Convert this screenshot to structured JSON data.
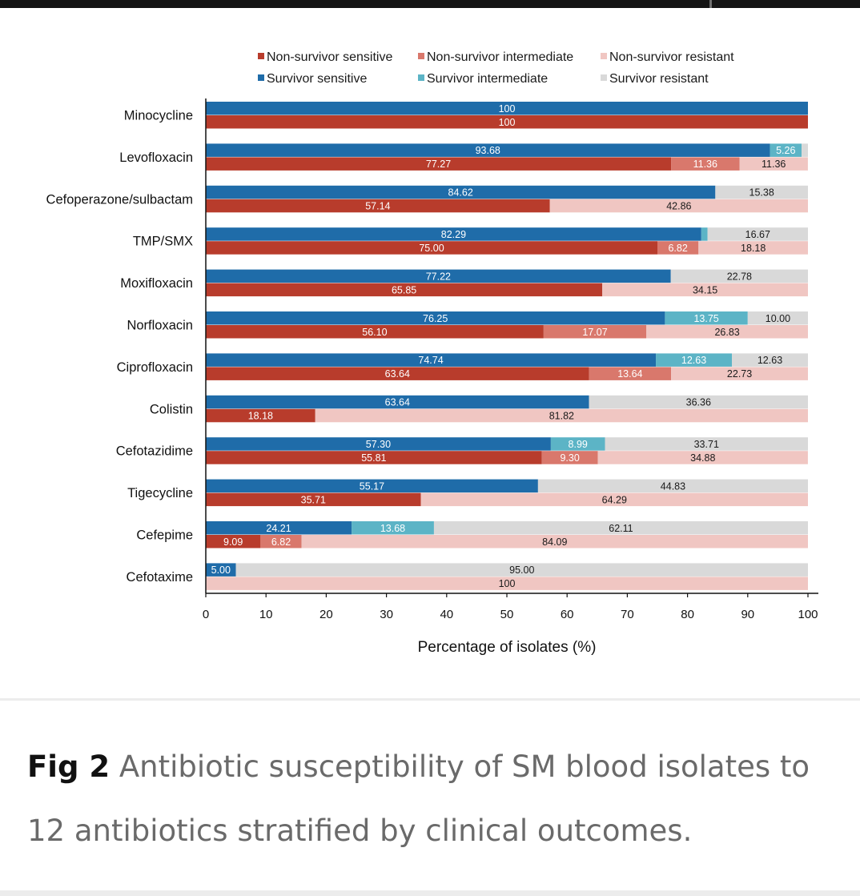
{
  "caption": {
    "figure_label": "Fig 2",
    "text": "Antibiotic susceptibility of SM blood isolates to 12 antibiotics stratified by clinical outcomes."
  },
  "chart_data": {
    "type": "bar",
    "orientation": "horizontal",
    "stacked": true,
    "title": "",
    "xlabel": "Percentage of isolates (%)",
    "ylabel": "",
    "xlim": [
      0,
      100
    ],
    "xticks": [
      0,
      10,
      20,
      30,
      40,
      50,
      60,
      70,
      80,
      90,
      100
    ],
    "grid": false,
    "legend_position": "top",
    "categories": [
      "Minocycline",
      "Levofloxacin",
      "Cefoperazone/sulbactam",
      "TMP/SMX",
      "Moxifloxacin",
      "Norfloxacin",
      "Ciprofloxacin",
      "Colistin",
      "Cefotazidime",
      "Tigecycline",
      "Cefepime",
      "Cefotaxime"
    ],
    "legend": [
      {
        "label": "Non-survivor sensitive",
        "color": "#b83c2c"
      },
      {
        "label": "Non-survivor intermediate",
        "color": "#d9786c"
      },
      {
        "label": "Non-survivor resistant",
        "color": "#f0c6c2"
      },
      {
        "label": "Survivor sensitive",
        "color": "#1f6ca9"
      },
      {
        "label": "Survivor intermediate",
        "color": "#5cb4c6"
      },
      {
        "label": "Survivor resistant",
        "color": "#d9d9d9"
      }
    ],
    "series": [
      {
        "name": "Survivor sensitive",
        "group": "survivor",
        "color": "#1f6ca9",
        "values": [
          100,
          93.68,
          84.62,
          82.29,
          77.22,
          76.25,
          74.74,
          63.64,
          57.3,
          55.17,
          24.21,
          5.0
        ],
        "labels": [
          "100",
          "93.68",
          "84.62",
          "82.29",
          "77.22",
          "76.25",
          "74.74",
          "63.64",
          "57.30",
          "55.17",
          "24.21",
          "5.00"
        ]
      },
      {
        "name": "Survivor intermediate",
        "group": "survivor",
        "color": "#5cb4c6",
        "values": [
          0,
          5.26,
          0,
          1.04,
          0,
          13.75,
          12.63,
          0,
          8.99,
          0,
          13.68,
          0
        ],
        "labels": [
          "",
          "5.26",
          "",
          "",
          "",
          "13.75",
          "12.63",
          "",
          "8.99",
          "",
          "13.68",
          ""
        ]
      },
      {
        "name": "Survivor resistant",
        "group": "survivor",
        "color": "#d9d9d9",
        "values": [
          0,
          1.06,
          15.38,
          16.67,
          22.78,
          10.0,
          12.63,
          36.36,
          33.71,
          44.83,
          62.11,
          95.0
        ],
        "labels": [
          "",
          "",
          "15.38",
          "16.67",
          "22.78",
          "10.00",
          "12.63",
          "36.36",
          "33.71",
          "44.83",
          "62.11",
          "95.00"
        ]
      },
      {
        "name": "Non-survivor sensitive",
        "group": "non-survivor",
        "color": "#b83c2c",
        "values": [
          100,
          77.27,
          57.14,
          75.0,
          65.85,
          56.1,
          63.64,
          18.18,
          55.81,
          35.71,
          9.09,
          0
        ],
        "labels": [
          "100",
          "77.27",
          "57.14",
          "75.00",
          "65.85",
          "56.10",
          "63.64",
          "18.18",
          "55.81",
          "35.71",
          "9.09",
          ""
        ]
      },
      {
        "name": "Non-survivor intermediate",
        "group": "non-survivor",
        "color": "#d9786c",
        "values": [
          0,
          11.36,
          0,
          6.82,
          0,
          17.07,
          13.64,
          0,
          9.3,
          0,
          6.82,
          0
        ],
        "labels": [
          "",
          "11.36",
          "",
          "6.82",
          "",
          "17.07",
          "13.64",
          "",
          "9.30",
          "",
          "6.82",
          ""
        ]
      },
      {
        "name": "Non-survivor resistant",
        "group": "non-survivor",
        "color": "#f0c6c2",
        "values": [
          0,
          11.36,
          42.86,
          18.18,
          34.15,
          26.83,
          22.73,
          81.82,
          34.88,
          64.29,
          84.09,
          100
        ],
        "labels": [
          "",
          "11.36",
          "42.86",
          "18.18",
          "34.15",
          "26.83",
          "22.73",
          "81.82",
          "34.88",
          "64.29",
          "84.09",
          "100"
        ]
      }
    ]
  }
}
